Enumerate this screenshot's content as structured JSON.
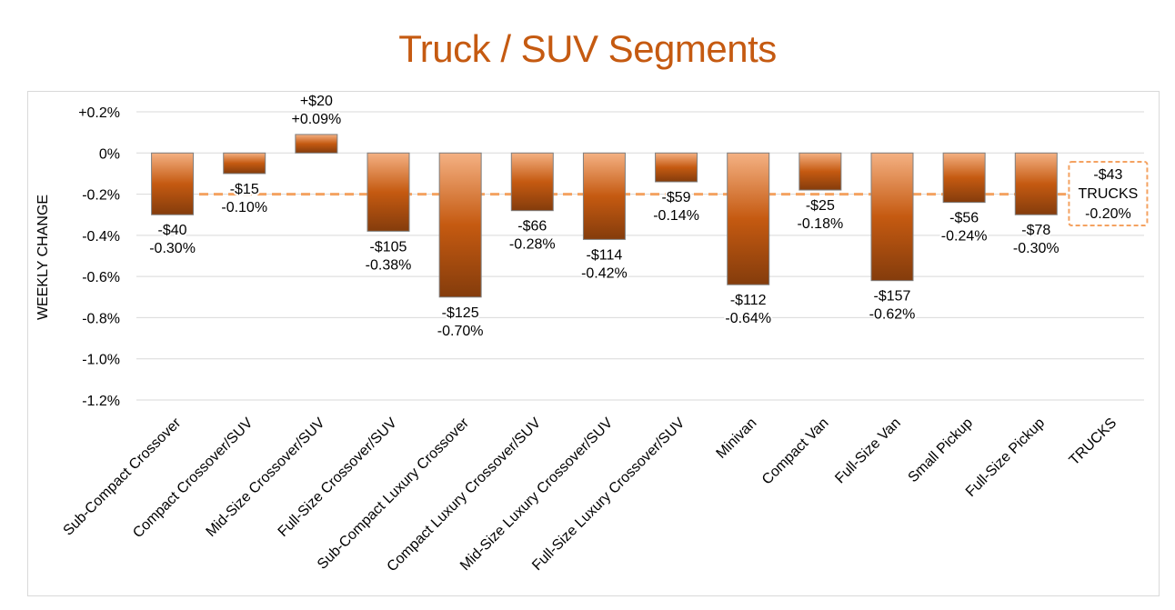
{
  "chart_data": {
    "type": "bar",
    "title": "Truck / SUV Segments",
    "xlabel": "",
    "ylabel": "WEEKLY CHANGE",
    "ylim": [
      -1.2,
      0.2
    ],
    "yticks": [
      {
        "value": 0.2,
        "label": "+0.2%"
      },
      {
        "value": 0.0,
        "label": "0%"
      },
      {
        "value": -0.2,
        "label": "-0.2%"
      },
      {
        "value": -0.4,
        "label": "-0.4%"
      },
      {
        "value": -0.6,
        "label": "-0.6%"
      },
      {
        "value": -0.8,
        "label": "-0.8%"
      },
      {
        "value": -1.0,
        "label": "-1.0%"
      },
      {
        "value": -1.2,
        "label": "-1.2%"
      }
    ],
    "grid": true,
    "categories": [
      "Sub-Compact Crossover",
      "Compact Crossover/SUV",
      "Mid-Size Crossover/SUV",
      "Full-Size Crossover/SUV",
      "Sub-Compact Luxury Crossover",
      "Compact Luxury Crossover/SUV",
      "Mid-Size Luxury Crossover/SUV",
      "Full-Size Luxury Crossover/SUV",
      "Minivan",
      "Compact Van",
      "Full-Size Van",
      "Small Pickup",
      "Full-Size Pickup",
      "TRUCKS"
    ],
    "values": [
      -0.3,
      -0.1,
      0.09,
      -0.38,
      -0.7,
      -0.28,
      -0.42,
      -0.14,
      -0.64,
      -0.18,
      -0.62,
      -0.24,
      -0.3,
      null
    ],
    "dollar_labels": [
      "-$40",
      "-$15",
      "+$20",
      "-$105",
      "-$125",
      "-$66",
      "-$114",
      "-$59",
      "-$112",
      "-$25",
      "-$157",
      "-$56",
      "-$78"
    ],
    "percent_labels": [
      "-0.30%",
      "-0.10%",
      "+0.09%",
      "-0.38%",
      "-0.70%",
      "-0.28%",
      "-0.42%",
      "-0.14%",
      "-0.64%",
      "-0.18%",
      "-0.62%",
      "-0.24%",
      "-0.30%"
    ],
    "average": {
      "value": -0.2,
      "dollar_label": "-$43",
      "name_label": "TRUCKS",
      "percent_label": "-0.20%"
    },
    "colors": {
      "title": "#c55a11",
      "bar_top": "#f4b183",
      "bar_mid": "#c55a11",
      "bar_bottom": "#843c0c",
      "average_line": "#f4a261",
      "grid": "#d9d9d9"
    }
  }
}
